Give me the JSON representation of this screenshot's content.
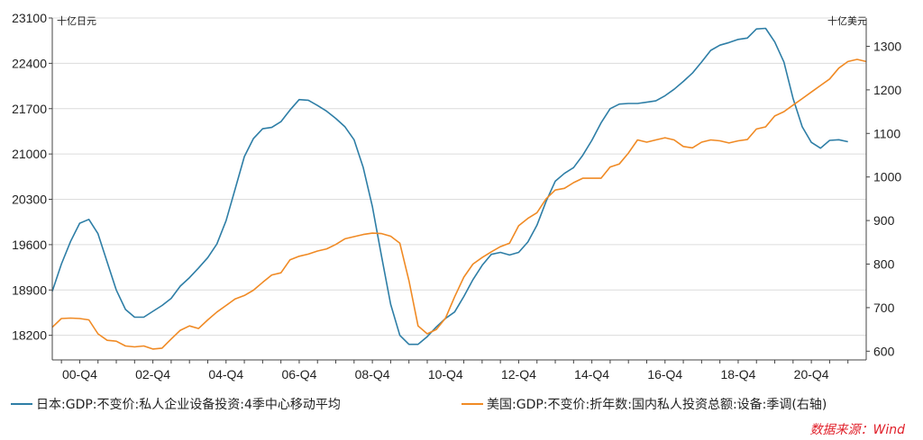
{
  "chart_data": {
    "type": "line",
    "left_axis_unit": "十亿日元",
    "right_axis_unit": "十亿美元",
    "x_ticks": [
      "00-Q4",
      "02-Q4",
      "04-Q4",
      "06-Q4",
      "08-Q4",
      "10-Q4",
      "12-Q4",
      "14-Q4",
      "16-Q4",
      "18-Q4",
      "20-Q4"
    ],
    "x_tick_years": [
      2000.75,
      2002.75,
      2004.75,
      2006.75,
      2008.75,
      2010.75,
      2012.75,
      2014.75,
      2016.75,
      2018.75,
      2020.75
    ],
    "x_range": [
      2000.0,
      2022.25
    ],
    "y_left_ticks": [
      18200,
      18900,
      19600,
      20300,
      21000,
      21700,
      22400,
      23100
    ],
    "y_left_range": [
      17820,
      23100
    ],
    "y_right_ticks": [
      600,
      700,
      800,
      900,
      1000,
      1100,
      1200,
      1300
    ],
    "y_right_range": [
      580,
      1365
    ],
    "grid": "horizontal",
    "legend_position": "bottom",
    "series": [
      {
        "name": "日本:GDP:不变价:私人企业设备投资:4季中心移动平均",
        "axis": "left",
        "color": "#2e7ea6",
        "x": [
          2000.0,
          2000.25,
          2000.5,
          2000.75,
          2001.0,
          2001.25,
          2001.5,
          2001.75,
          2002.0,
          2002.25,
          2002.5,
          2002.75,
          2003.0,
          2003.25,
          2003.5,
          2003.75,
          2004.0,
          2004.25,
          2004.5,
          2004.75,
          2005.0,
          2005.25,
          2005.5,
          2005.75,
          2006.0,
          2006.25,
          2006.5,
          2006.75,
          2007.0,
          2007.25,
          2007.5,
          2007.75,
          2008.0,
          2008.25,
          2008.5,
          2008.75,
          2009.0,
          2009.25,
          2009.5,
          2009.75,
          2010.0,
          2010.25,
          2010.5,
          2010.75,
          2011.0,
          2011.25,
          2011.5,
          2011.75,
          2012.0,
          2012.25,
          2012.5,
          2012.75,
          2013.0,
          2013.25,
          2013.5,
          2013.75,
          2014.0,
          2014.25,
          2014.5,
          2014.75,
          2015.0,
          2015.25,
          2015.5,
          2015.75,
          2016.0,
          2016.25,
          2016.5,
          2016.75,
          2017.0,
          2017.25,
          2017.5,
          2017.75,
          2018.0,
          2018.25,
          2018.5,
          2018.75,
          2019.0,
          2019.25,
          2019.5,
          2019.75,
          2020.0,
          2020.25,
          2020.5,
          2020.75,
          2021.0,
          2021.25,
          2021.5,
          2021.75
        ],
        "values": [
          18880,
          19300,
          19650,
          19930,
          19990,
          19770,
          19330,
          18900,
          18600,
          18480,
          18480,
          18570,
          18660,
          18770,
          18960,
          19090,
          19240,
          19400,
          19610,
          19970,
          20460,
          20960,
          21240,
          21390,
          21410,
          21500,
          21680,
          21840,
          21830,
          21750,
          21660,
          21550,
          21420,
          21220,
          20790,
          20190,
          19420,
          18680,
          18200,
          18060,
          18060,
          18180,
          18330,
          18460,
          18560,
          18800,
          19060,
          19280,
          19450,
          19480,
          19440,
          19480,
          19640,
          19900,
          20270,
          20580,
          20700,
          20790,
          20980,
          21210,
          21480,
          21700,
          21770,
          21780,
          21780,
          21800,
          21820,
          21900,
          22000,
          22120,
          22250,
          22420,
          22600,
          22680,
          22720,
          22770,
          22790,
          22930,
          22940,
          22730,
          22420,
          21860,
          21420,
          21180,
          21090,
          21210,
          21220,
          21190
        ]
      },
      {
        "name": "美国:GDP:不变价:折年数:国内私人投资总额:设备:季调(右轴)",
        "axis": "right",
        "color": "#f08a24",
        "x": [
          2000.0,
          2000.25,
          2000.5,
          2000.75,
          2001.0,
          2001.25,
          2001.5,
          2001.75,
          2002.0,
          2002.25,
          2002.5,
          2002.75,
          2003.0,
          2003.25,
          2003.5,
          2003.75,
          2004.0,
          2004.25,
          2004.5,
          2004.75,
          2005.0,
          2005.25,
          2005.5,
          2005.75,
          2006.0,
          2006.25,
          2006.5,
          2006.75,
          2007.0,
          2007.25,
          2007.5,
          2007.75,
          2008.0,
          2008.25,
          2008.5,
          2008.75,
          2009.0,
          2009.25,
          2009.5,
          2009.75,
          2010.0,
          2010.25,
          2010.5,
          2010.75,
          2011.0,
          2011.25,
          2011.5,
          2011.75,
          2012.0,
          2012.25,
          2012.5,
          2012.75,
          2013.0,
          2013.25,
          2013.5,
          2013.75,
          2014.0,
          2014.25,
          2014.5,
          2014.75,
          2015.0,
          2015.25,
          2015.5,
          2015.75,
          2016.0,
          2016.25,
          2016.5,
          2016.75,
          2017.0,
          2017.25,
          2017.5,
          2017.75,
          2018.0,
          2018.25,
          2018.5,
          2018.75,
          2019.0,
          2019.25,
          2019.5,
          2019.75,
          2020.0,
          2020.25,
          2020.5,
          2020.75,
          2021.0,
          2021.25,
          2021.5,
          2021.75,
          2022.0,
          2022.25
        ],
        "values": [
          655,
          675,
          676,
          675,
          672,
          640,
          625,
          623,
          612,
          610,
          612,
          605,
          607,
          628,
          648,
          658,
          652,
          672,
          690,
          705,
          720,
          728,
          740,
          758,
          775,
          780,
          810,
          818,
          823,
          830,
          835,
          845,
          858,
          863,
          868,
          871,
          870,
          864,
          848,
          762,
          658,
          640,
          650,
          676,
          725,
          770,
          800,
          815,
          828,
          840,
          848,
          888,
          905,
          918,
          950,
          970,
          974,
          987,
          997,
          997,
          997,
          1023,
          1030,
          1055,
          1085,
          1080,
          1085,
          1090,
          1085,
          1070,
          1067,
          1080,
          1085,
          1083,
          1078,
          1083,
          1086,
          1110,
          1115,
          1140,
          1150,
          1165,
          1180,
          1195,
          1210,
          1225,
          1250,
          1265,
          1270,
          1265
        ]
      }
    ],
    "source": "数据来源：Wind"
  }
}
